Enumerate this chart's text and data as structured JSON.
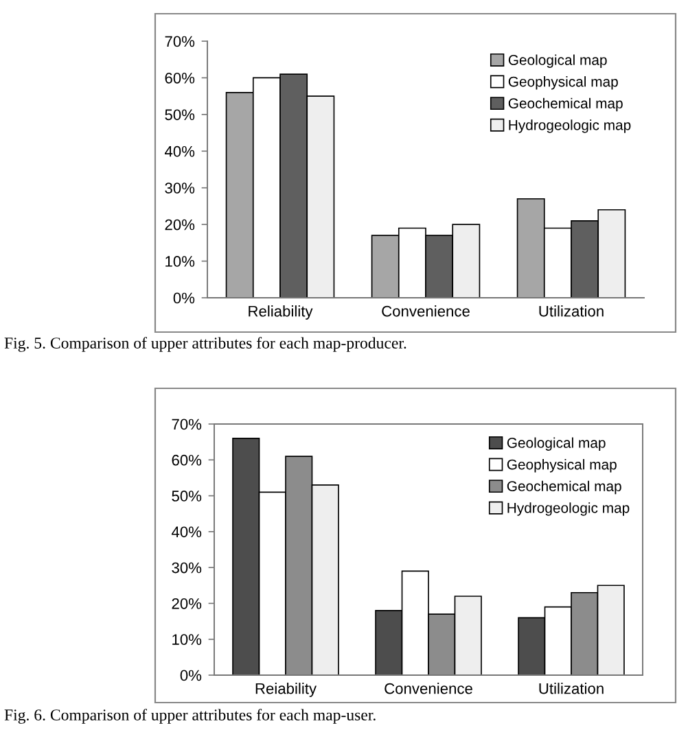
{
  "chart_data": [
    {
      "type": "bar",
      "categories": [
        "Reliability",
        "Convenience",
        "Utilization"
      ],
      "series": [
        {
          "name": "Geological map",
          "color": "#a6a6a6",
          "values": [
            56,
            17,
            27
          ]
        },
        {
          "name": "Geophysical map",
          "color": "#ffffff",
          "values": [
            60,
            19,
            19
          ]
        },
        {
          "name": "Geochemical map",
          "color": "#5f5f5f",
          "values": [
            61,
            17,
            21
          ]
        },
        {
          "name": "Hydrogeologic map",
          "color": "#eeeeee",
          "values": [
            55,
            20,
            24
          ]
        }
      ],
      "ylim": [
        0,
        70
      ],
      "yticks": [
        {
          "value": 0,
          "label": "0%"
        },
        {
          "value": 10,
          "label": "10%"
        },
        {
          "value": 20,
          "label": "20%"
        },
        {
          "value": 30,
          "label": "30%"
        },
        {
          "value": 40,
          "label": "40%"
        },
        {
          "value": 50,
          "label": "50%"
        },
        {
          "value": 60,
          "label": "60%"
        },
        {
          "value": 70,
          "label": "70%"
        }
      ],
      "legend": "top right",
      "annotations": [
        "Fig. 5. Comparison of upper attributes for each map-producer."
      ]
    },
    {
      "type": "bar",
      "categories": [
        "Reiability",
        "Convenience",
        "Utilization"
      ],
      "series": [
        {
          "name": "Geological map",
          "color": "#4d4d4d",
          "values": [
            66,
            18,
            16
          ]
        },
        {
          "name": "Geophysical map",
          "color": "#ffffff",
          "values": [
            51,
            29,
            19
          ]
        },
        {
          "name": "Geochemical map",
          "color": "#8c8c8c",
          "values": [
            61,
            17,
            23
          ]
        },
        {
          "name": "Hydrogeologic map",
          "color": "#eeeeee",
          "values": [
            53,
            22,
            25
          ]
        }
      ],
      "ylim": [
        0,
        70
      ],
      "yticks": [
        {
          "value": 0,
          "label": "0%"
        },
        {
          "value": 10,
          "label": "10%"
        },
        {
          "value": 20,
          "label": "20%"
        },
        {
          "value": 30,
          "label": "30%"
        },
        {
          "value": 40,
          "label": "40%"
        },
        {
          "value": 50,
          "label": "50%"
        },
        {
          "value": 60,
          "label": "60%"
        },
        {
          "value": 70,
          "label": "70%"
        }
      ],
      "legend": "top right",
      "annotations": [
        "Fig. 6. Comparison of upper attributes for each map-user."
      ]
    }
  ]
}
